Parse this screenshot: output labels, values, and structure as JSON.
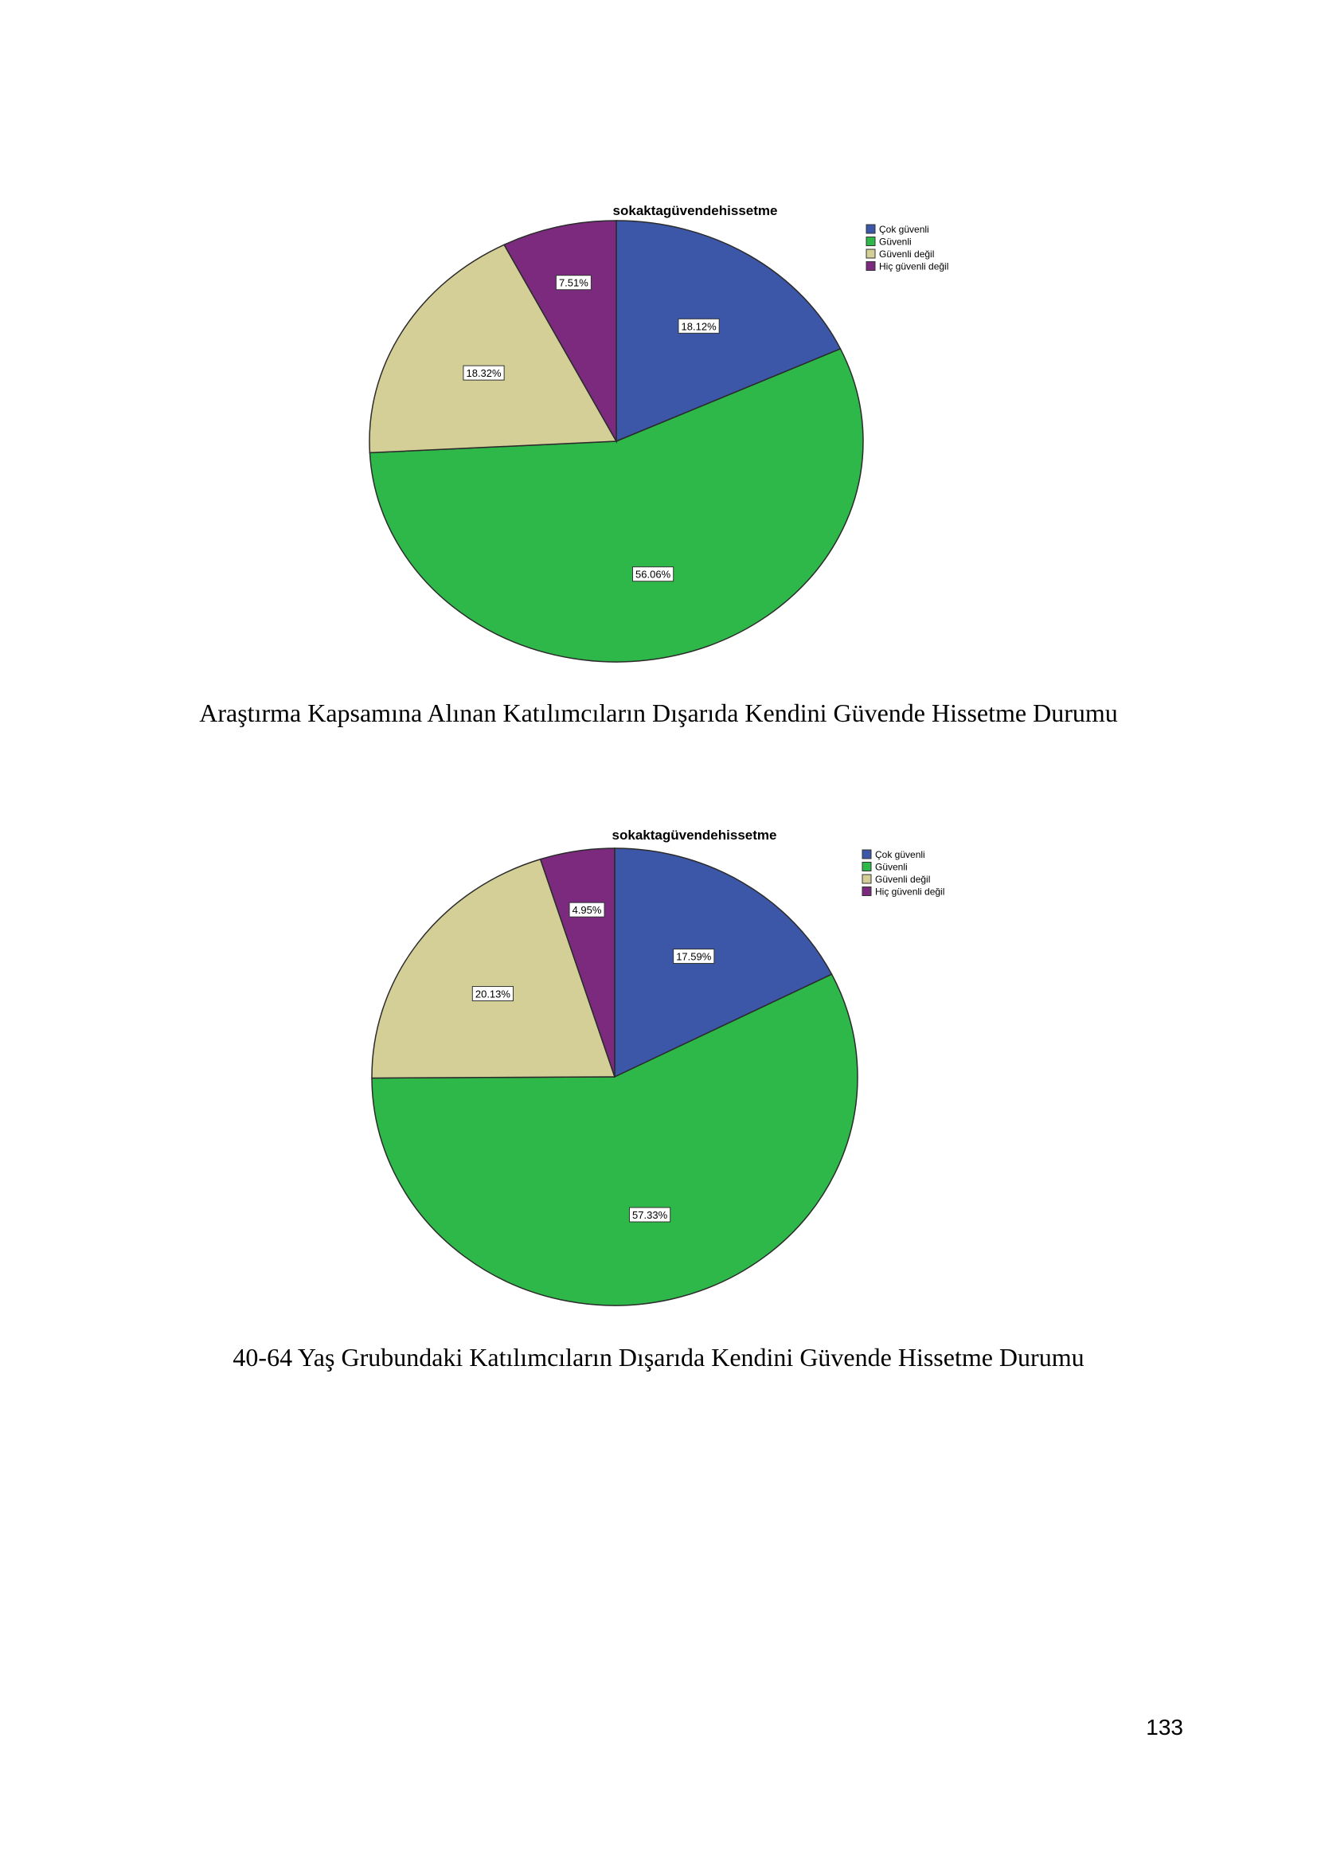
{
  "chart_data": [
    {
      "type": "pie",
      "title": "sokaktagüvendehissetme",
      "slices": [
        {
          "label": "Çok güvenli",
          "value": 18.12,
          "value_label": "18.12%",
          "color": "#3c56a8"
        },
        {
          "label": "Güvenli",
          "value": 56.06,
          "value_label": "56.06%",
          "color": "#2fb84a"
        },
        {
          "label": "Güvenli değil",
          "value": 18.32,
          "value_label": "18.32%",
          "color": "#d4cf97"
        },
        {
          "label": "Hiç güvenli değil",
          "value": 7.51,
          "value_label": "7.51%",
          "color": "#7b2a7e"
        }
      ],
      "legend_position": "top-right",
      "caption": "Araştırma Kapsamına Alınan Katılımcıların Dışarıda Kendini Güvende Hissetme Durumu"
    },
    {
      "type": "pie",
      "title": "sokaktagüvendehissetme",
      "slices": [
        {
          "label": "Çok güvenli",
          "value": 17.59,
          "value_label": "17.59%",
          "color": "#3c56a8"
        },
        {
          "label": "Güvenli",
          "value": 57.33,
          "value_label": "57.33%",
          "color": "#2fb84a"
        },
        {
          "label": "Güvenli değil",
          "value": 20.13,
          "value_label": "20.13%",
          "color": "#d4cf97"
        },
        {
          "label": "Hiç güvenli değil",
          "value": 4.95,
          "value_label": "4.95%",
          "color": "#7b2a7e"
        }
      ],
      "legend_position": "top-right",
      "caption": "40-64 Yaş Grubundaki Katılımcıların Dışarıda Kendini Güvende Hissetme Durumu"
    }
  ],
  "page_number": "133"
}
